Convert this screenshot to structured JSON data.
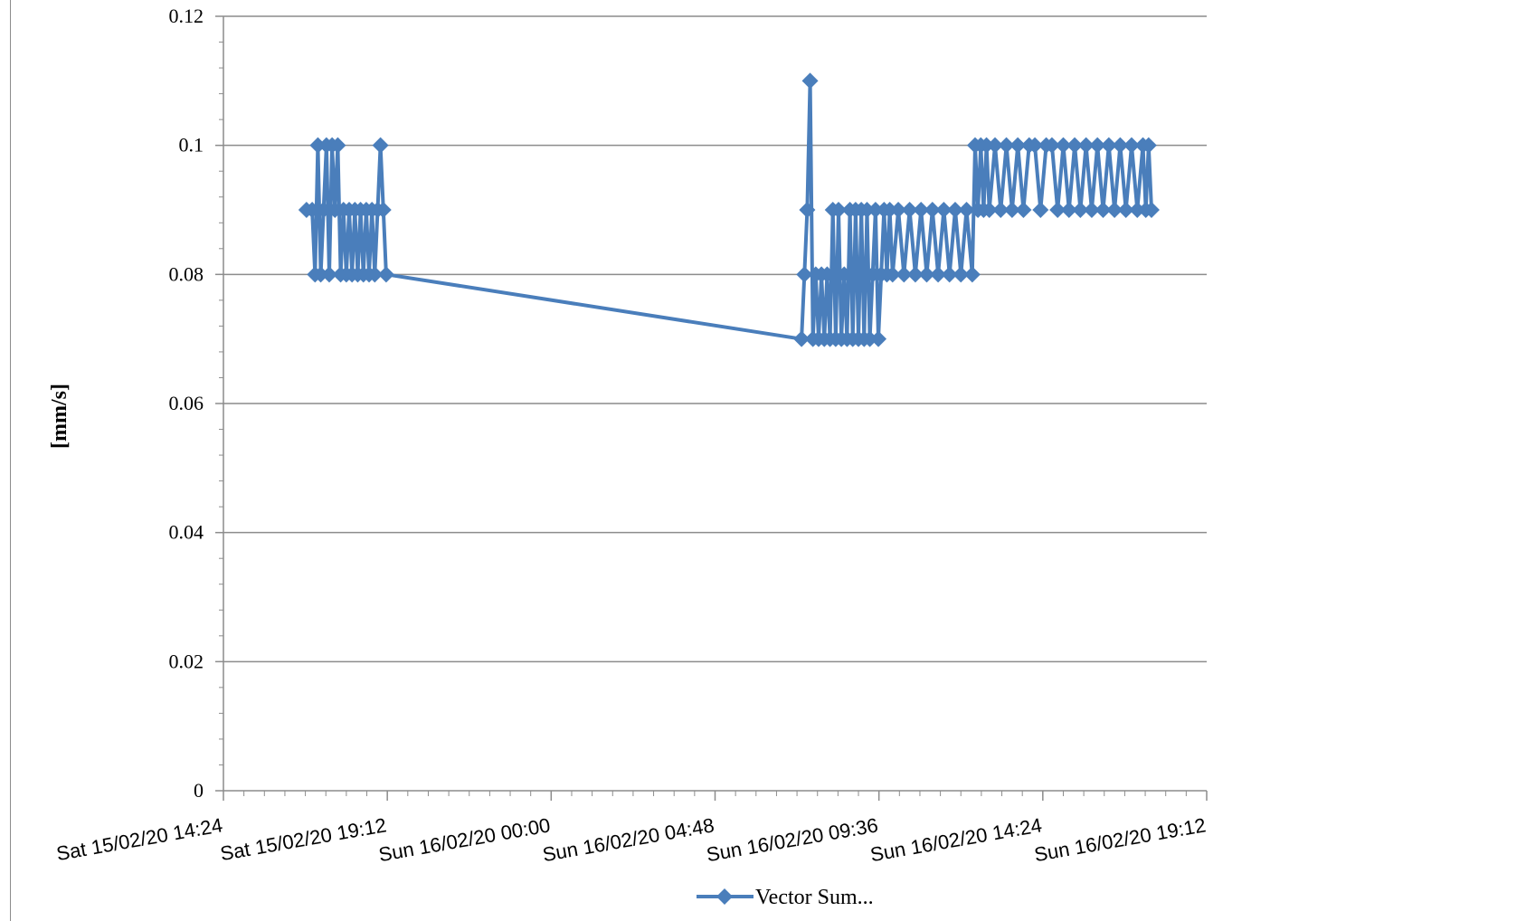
{
  "chart_data": {
    "type": "line",
    "title": "",
    "xlabel": "",
    "ylabel": "[mm/s]",
    "ylim": [
      0,
      0.12
    ],
    "y_ticks": [
      "0",
      "0.02",
      "0.04",
      "0.06",
      "0.08",
      "0.1",
      "0.12"
    ],
    "xlim": [
      "Sat 15/02/20 14:24",
      "Sun 16/02/20 19:12"
    ],
    "x_ticks": [
      "Sat 15/02/20 14:24",
      "Sat 15/02/20 19:12",
      "Sun 16/02/20 00:00",
      "Sun 16/02/20 04:48",
      "Sun 16/02/20 09:36",
      "Sun 16/02/20 14:24",
      "Sun 16/02/20 19:12"
    ],
    "grid": true,
    "legend_position": "bottom",
    "series": [
      {
        "name": "Vector Sum...",
        "color": "#4a7ebb",
        "marker": "diamond",
        "points": [
          [
            "2020-02-15 16:50",
            0.09
          ],
          [
            "2020-02-15 17:00",
            0.09
          ],
          [
            "2020-02-15 17:05",
            0.08
          ],
          [
            "2020-02-15 17:10",
            0.1
          ],
          [
            "2020-02-15 17:15",
            0.08
          ],
          [
            "2020-02-15 17:20",
            0.09
          ],
          [
            "2020-02-15 17:25",
            0.1
          ],
          [
            "2020-02-15 17:30",
            0.08
          ],
          [
            "2020-02-15 17:35",
            0.1
          ],
          [
            "2020-02-15 17:40",
            0.09
          ],
          [
            "2020-02-15 17:45",
            0.1
          ],
          [
            "2020-02-15 17:50",
            0.08
          ],
          [
            "2020-02-15 17:55",
            0.09
          ],
          [
            "2020-02-15 18:00",
            0.08
          ],
          [
            "2020-02-15 18:05",
            0.09
          ],
          [
            "2020-02-15 18:10",
            0.08
          ],
          [
            "2020-02-15 18:15",
            0.09
          ],
          [
            "2020-02-15 18:20",
            0.08
          ],
          [
            "2020-02-15 18:25",
            0.09
          ],
          [
            "2020-02-15 18:30",
            0.08
          ],
          [
            "2020-02-15 18:35",
            0.09
          ],
          [
            "2020-02-15 18:40",
            0.08
          ],
          [
            "2020-02-15 18:45",
            0.09
          ],
          [
            "2020-02-15 18:50",
            0.08
          ],
          [
            "2020-02-15 18:55",
            0.09
          ],
          [
            "2020-02-15 19:00",
            0.1
          ],
          [
            "2020-02-15 19:05",
            0.09
          ],
          [
            "2020-02-15 19:10",
            0.08
          ],
          [
            "2020-02-16 07:20",
            0.07
          ],
          [
            "2020-02-16 07:25",
            0.08
          ],
          [
            "2020-02-16 07:30",
            0.09
          ],
          [
            "2020-02-16 07:35",
            0.11
          ],
          [
            "2020-02-16 07:40",
            0.07
          ],
          [
            "2020-02-16 07:45",
            0.08
          ],
          [
            "2020-02-16 07:50",
            0.07
          ],
          [
            "2020-02-16 07:55",
            0.08
          ],
          [
            "2020-02-16 08:00",
            0.07
          ],
          [
            "2020-02-16 08:05",
            0.08
          ],
          [
            "2020-02-16 08:10",
            0.07
          ],
          [
            "2020-02-16 08:15",
            0.09
          ],
          [
            "2020-02-16 08:20",
            0.07
          ],
          [
            "2020-02-16 08:25",
            0.09
          ],
          [
            "2020-02-16 08:30",
            0.07
          ],
          [
            "2020-02-16 08:35",
            0.08
          ],
          [
            "2020-02-16 08:40",
            0.07
          ],
          [
            "2020-02-16 08:45",
            0.09
          ],
          [
            "2020-02-16 08:50",
            0.07
          ],
          [
            "2020-02-16 08:55",
            0.09
          ],
          [
            "2020-02-16 09:00",
            0.07
          ],
          [
            "2020-02-16 09:05",
            0.09
          ],
          [
            "2020-02-16 09:10",
            0.07
          ],
          [
            "2020-02-16 09:15",
            0.09
          ],
          [
            "2020-02-16 09:20",
            0.07
          ],
          [
            "2020-02-16 09:25",
            0.08
          ],
          [
            "2020-02-16 09:30",
            0.09
          ],
          [
            "2020-02-16 09:35",
            0.07
          ],
          [
            "2020-02-16 09:40",
            0.08
          ],
          [
            "2020-02-16 09:45",
            0.09
          ],
          [
            "2020-02-16 09:50",
            0.08
          ],
          [
            "2020-02-16 09:55",
            0.09
          ],
          [
            "2020-02-16 10:00",
            0.08
          ],
          [
            "2020-02-16 10:10",
            0.09
          ],
          [
            "2020-02-16 10:20",
            0.08
          ],
          [
            "2020-02-16 10:30",
            0.09
          ],
          [
            "2020-02-16 10:40",
            0.08
          ],
          [
            "2020-02-16 10:50",
            0.09
          ],
          [
            "2020-02-16 11:00",
            0.08
          ],
          [
            "2020-02-16 11:10",
            0.09
          ],
          [
            "2020-02-16 11:20",
            0.08
          ],
          [
            "2020-02-16 11:30",
            0.09
          ],
          [
            "2020-02-16 11:40",
            0.08
          ],
          [
            "2020-02-16 11:50",
            0.09
          ],
          [
            "2020-02-16 12:00",
            0.08
          ],
          [
            "2020-02-16 12:10",
            0.09
          ],
          [
            "2020-02-16 12:20",
            0.08
          ],
          [
            "2020-02-16 12:25",
            0.1
          ],
          [
            "2020-02-16 12:30",
            0.09
          ],
          [
            "2020-02-16 12:35",
            0.1
          ],
          [
            "2020-02-16 12:40",
            0.09
          ],
          [
            "2020-02-16 12:45",
            0.1
          ],
          [
            "2020-02-16 12:50",
            0.09
          ],
          [
            "2020-02-16 13:00",
            0.1
          ],
          [
            "2020-02-16 13:10",
            0.09
          ],
          [
            "2020-02-16 13:20",
            0.1
          ],
          [
            "2020-02-16 13:30",
            0.09
          ],
          [
            "2020-02-16 13:40",
            0.1
          ],
          [
            "2020-02-16 13:50",
            0.09
          ],
          [
            "2020-02-16 14:00",
            0.1
          ],
          [
            "2020-02-16 14:10",
            0.1
          ],
          [
            "2020-02-16 14:20",
            0.09
          ],
          [
            "2020-02-16 14:30",
            0.1
          ],
          [
            "2020-02-16 14:40",
            0.1
          ],
          [
            "2020-02-16 14:50",
            0.09
          ],
          [
            "2020-02-16 15:00",
            0.1
          ],
          [
            "2020-02-16 15:10",
            0.09
          ],
          [
            "2020-02-16 15:20",
            0.1
          ],
          [
            "2020-02-16 15:30",
            0.09
          ],
          [
            "2020-02-16 15:40",
            0.1
          ],
          [
            "2020-02-16 15:50",
            0.09
          ],
          [
            "2020-02-16 16:00",
            0.1
          ],
          [
            "2020-02-16 16:10",
            0.09
          ],
          [
            "2020-02-16 16:20",
            0.1
          ],
          [
            "2020-02-16 16:30",
            0.09
          ],
          [
            "2020-02-16 16:40",
            0.1
          ],
          [
            "2020-02-16 16:50",
            0.09
          ],
          [
            "2020-02-16 17:00",
            0.1
          ],
          [
            "2020-02-16 17:10",
            0.09
          ],
          [
            "2020-02-16 17:20",
            0.1
          ],
          [
            "2020-02-16 17:25",
            0.09
          ],
          [
            "2020-02-16 17:30",
            0.1
          ],
          [
            "2020-02-16 17:35",
            0.09
          ]
        ]
      }
    ]
  }
}
